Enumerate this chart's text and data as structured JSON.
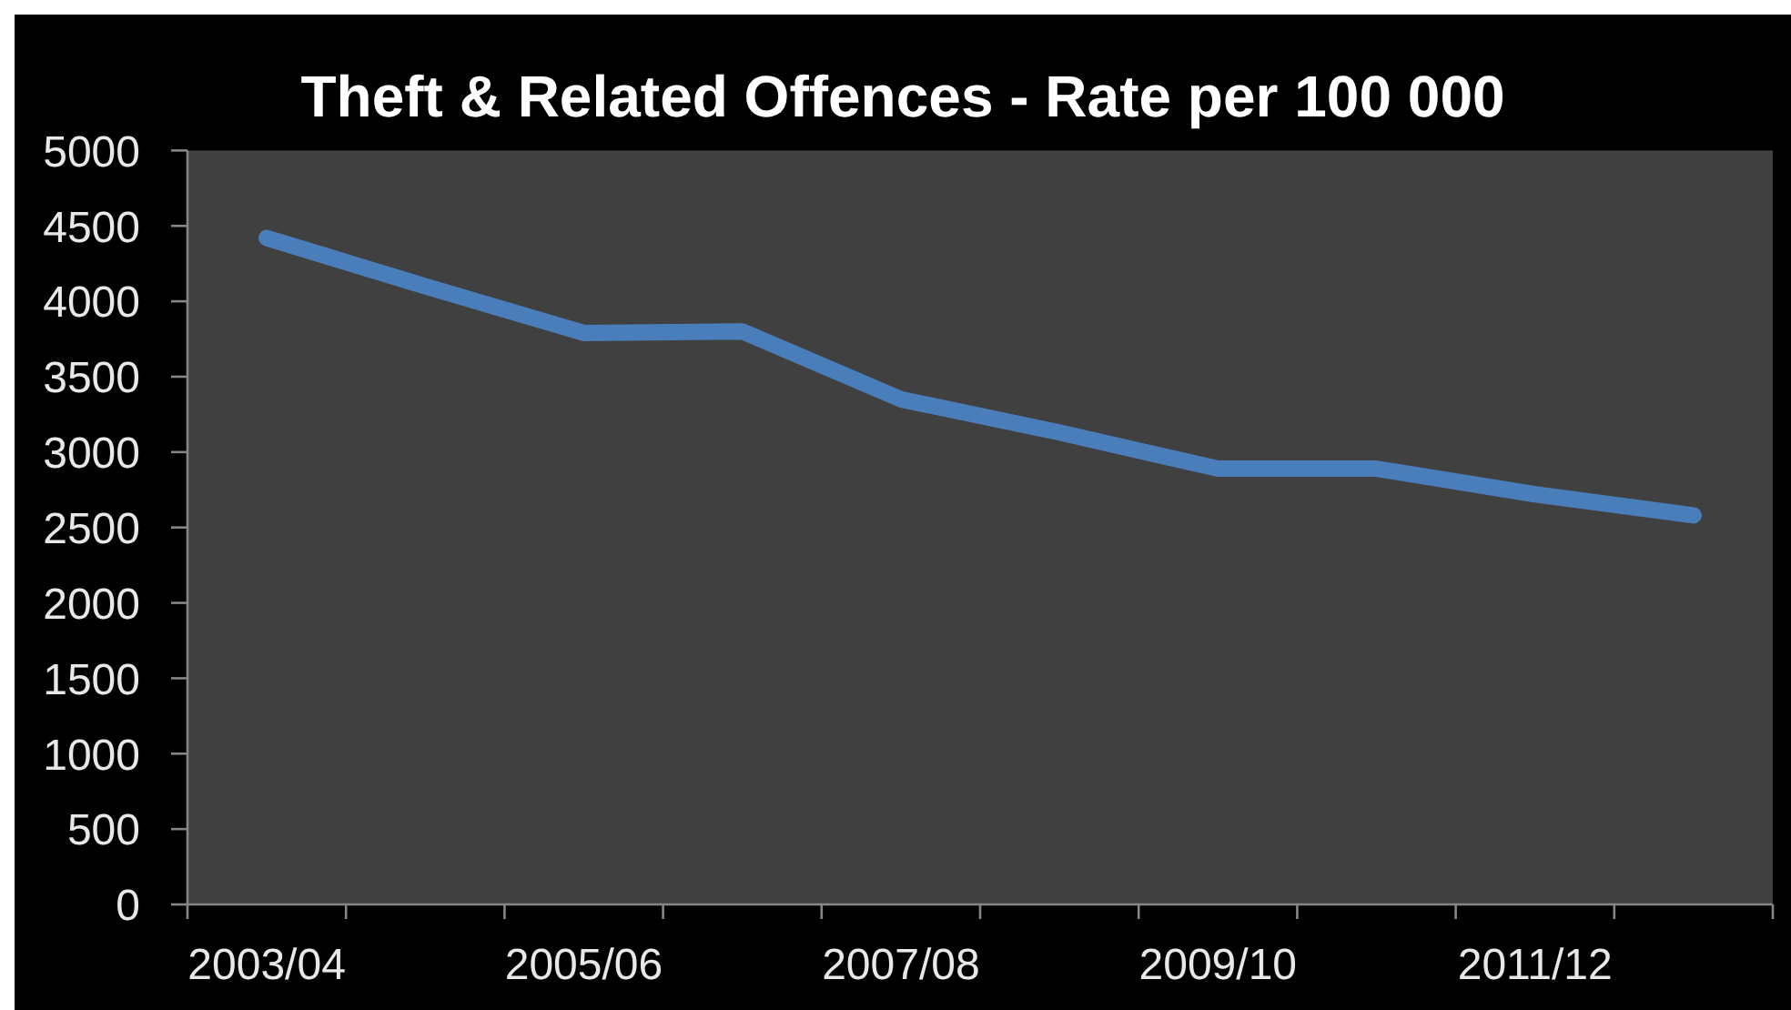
{
  "chart_data": {
    "type": "line",
    "title": "Theft & Related Offences - Rate per 100 000",
    "categories": [
      "2003/04",
      null,
      "2005/06",
      null,
      "2007/08",
      null,
      "2009/10",
      null,
      "2011/12",
      null
    ],
    "series": [
      {
        "color": "#4a7ebb",
        "values": [
          4420,
          4100,
          3790,
          3800,
          3350,
          3130,
          2890,
          2890,
          2720,
          2580
        ]
      }
    ],
    "ylim": [
      0,
      5000
    ],
    "yticks": [
      0,
      500,
      1000,
      1500,
      2000,
      2500,
      3000,
      3500,
      4000,
      4500,
      5000
    ]
  }
}
